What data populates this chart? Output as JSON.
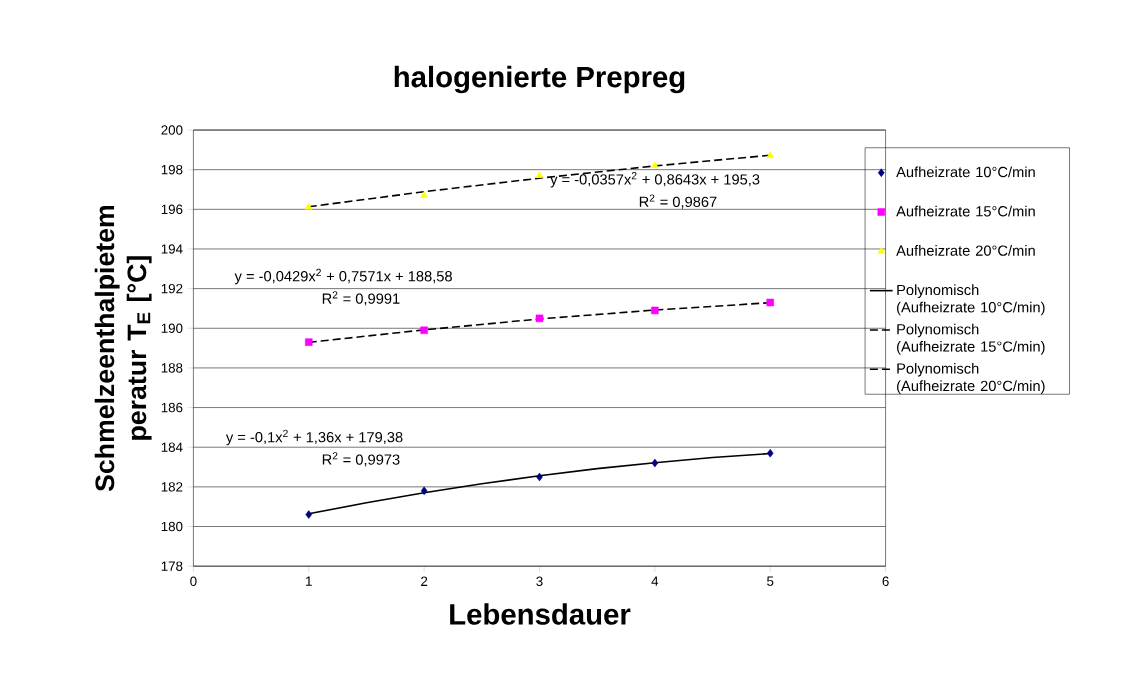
{
  "chart_data": {
    "type": "scatter",
    "title": "halogenierte Prepreg",
    "xlabel": "Lebensdauer",
    "ylabel": "Schmelzeenthalpietem peratur T$_{E}$ [°C]",
    "x": [
      1,
      2,
      3,
      4,
      5
    ],
    "series": [
      {
        "name": "Aufheizrate 10°C/min",
        "color": "#000080",
        "marker": "diamond",
        "values": [
          180.6,
          181.8,
          182.5,
          183.2,
          183.7
        ]
      },
      {
        "name": "Aufheizrate 15°C/min",
        "color": "#ff00ff",
        "marker": "square",
        "values": [
          189.3,
          189.9,
          190.5,
          190.9,
          191.3
        ]
      },
      {
        "name": "Aufheizrate 20°C/min",
        "color": "#ffff00",
        "marker": "triangle",
        "values": [
          196.1,
          196.7,
          197.7,
          198.2,
          198.7
        ]
      },
      {
        "name": "Polynomisch (Aufheizrate 10°C/min)",
        "type": "line",
        "color": "#000000",
        "line_style": "solid",
        "marker": "none",
        "x": [
          1,
          1.5,
          2,
          2.5,
          3,
          3.5,
          4,
          4.5,
          5
        ],
        "values": [
          180.64,
          181.2,
          181.7,
          182.16,
          182.56,
          182.92,
          183.22,
          183.48,
          183.68
        ]
      },
      {
        "name": "Polynomisch (Aufheizrate 15°C/min)",
        "type": "line",
        "color": "#000000",
        "line_style": "dashed",
        "marker": "none",
        "x": [
          1,
          2,
          3,
          4,
          5
        ],
        "values": [
          189.29,
          189.92,
          190.47,
          190.92,
          191.29
        ]
      },
      {
        "name": "Polynomisch (Aufheizrate 20°C/min)",
        "type": "line",
        "color": "#000000",
        "line_style": "dashed",
        "marker": "none",
        "x": [
          1,
          2,
          3,
          4,
          5
        ],
        "values": [
          196.13,
          196.89,
          197.57,
          198.19,
          198.73
        ]
      }
    ],
    "annotations": [
      "y = -0,0357x$^{2}$ + 0,8643x + 195,3",
      "R$^{2}$ = 0,9867",
      "y = -0,0429x$^{2}$ + 0,7571x + 188,58",
      "R$^{2}$ = 0,9991",
      "y = -0,1x$^{2}$ + 1,36x + 179,38",
      "R$^{2}$ = 0,9973"
    ],
    "xlim": [
      0,
      6
    ],
    "xticks": [
      0,
      1,
      2,
      3,
      4,
      5,
      6
    ],
    "ylim": [
      178,
      200
    ],
    "yticks": [
      178,
      180,
      182,
      184,
      186,
      188,
      190,
      192,
      194,
      196,
      198,
      200
    ],
    "grid": "y",
    "legend": "right"
  }
}
